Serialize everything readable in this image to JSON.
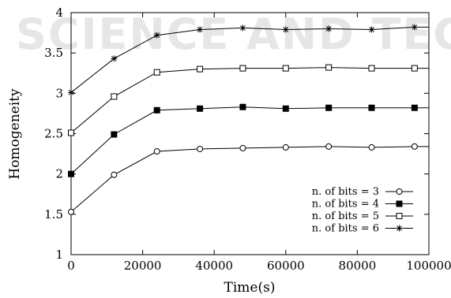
{
  "watermark": {
    "text": "SCIENCE AND TECH"
  },
  "chart_data": {
    "type": "line",
    "xlabel": "Time(s)",
    "ylabel": "Homogeneity",
    "xlim": [
      0,
      100000
    ],
    "ylim": [
      1,
      4
    ],
    "xticks": [
      0,
      20000,
      40000,
      60000,
      80000,
      100000
    ],
    "xtick_labels": [
      "0",
      "20000",
      "40000",
      "60000",
      "80000",
      "100000"
    ],
    "yticks": [
      1,
      1.5,
      2,
      2.5,
      3,
      3.5,
      4
    ],
    "ytick_labels": [
      "1",
      "1.5",
      "2",
      "2.5",
      "3",
      "3.5",
      "4"
    ],
    "grid": false,
    "legend_position": "bottom-right",
    "x": [
      0,
      12000,
      24000,
      36000,
      48000,
      60000,
      72000,
      84000,
      96000
    ],
    "series": [
      {
        "name": "n. of bits = 3",
        "marker": "circle-open",
        "values": [
          1.53,
          1.99,
          2.28,
          2.31,
          2.32,
          2.33,
          2.34,
          2.33,
          2.34
        ]
      },
      {
        "name": "n. of bits = 4",
        "marker": "square-filled",
        "values": [
          2.0,
          2.49,
          2.79,
          2.81,
          2.83,
          2.81,
          2.82,
          2.82,
          2.82
        ]
      },
      {
        "name": "n. of bits = 5",
        "marker": "square-open",
        "values": [
          2.51,
          2.96,
          3.26,
          3.3,
          3.31,
          3.31,
          3.32,
          3.31,
          3.31
        ]
      },
      {
        "name": "n. of bits = 6",
        "marker": "star",
        "values": [
          3.01,
          3.43,
          3.72,
          3.79,
          3.81,
          3.79,
          3.8,
          3.79,
          3.82
        ]
      }
    ]
  }
}
